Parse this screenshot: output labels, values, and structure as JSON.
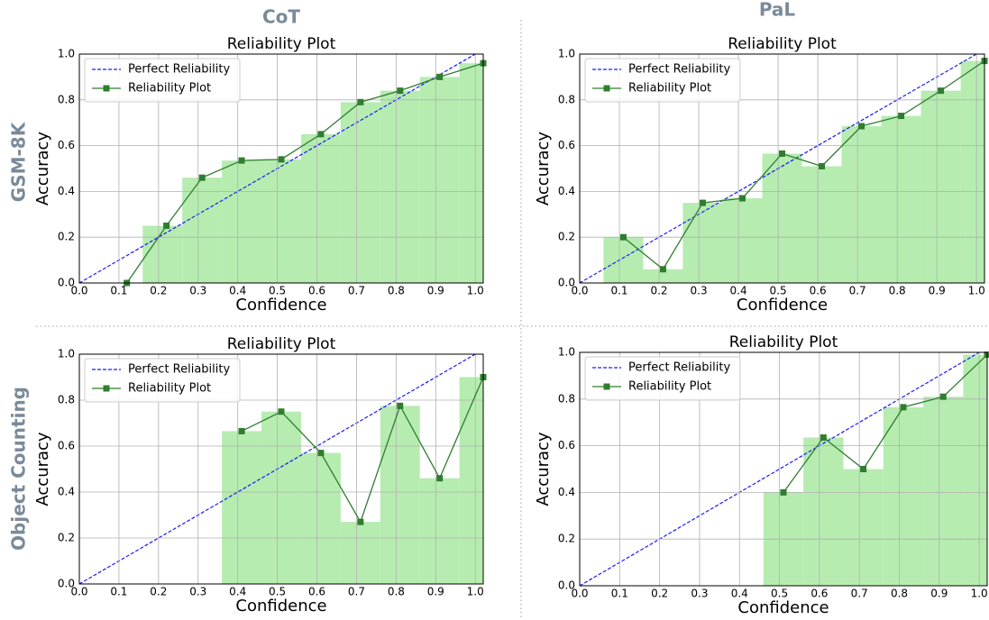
{
  "column_labels": [
    "CoT",
    "PaL"
  ],
  "row_labels": [
    "GSM-8K",
    "Object Counting"
  ],
  "chart_data": [
    {
      "type": "reliability",
      "title": "Reliability Plot",
      "xlabel": "Confidence",
      "ylabel": "Accuracy",
      "reference": {
        "name": "Perfect Reliability",
        "color": "#1a1aff"
      },
      "series": [
        {
          "name": "Reliability Plot",
          "color": "#2f7d2f",
          "x": [
            0.12,
            0.22,
            0.31,
            0.41,
            0.51,
            0.61,
            0.71,
            0.81,
            0.91,
            1.02
          ],
          "values": [
            0,
            0.25,
            0.46,
            0.535,
            0.54,
            0.65,
            0.79,
            0.84,
            0.9,
            0.96
          ]
        }
      ],
      "bar_color": "#b6ecb0",
      "bins": [
        0.16,
        0.26,
        0.36,
        0.46,
        0.56,
        0.66,
        0.76,
        0.86,
        0.96,
        1.06
      ],
      "bar_values": [
        0.25,
        0.46,
        0.535,
        0.54,
        0.65,
        0.79,
        0.84,
        0.9,
        0.96
      ],
      "xlim": [
        0,
        1.02
      ],
      "ylim": [
        0,
        1
      ],
      "xticks": [
        {
          "value": 0,
          "label": "0.0"
        },
        0.1,
        0.2,
        0.3,
        0.4,
        0.5,
        0.6,
        0.7,
        0.8,
        0.9,
        {
          "value": 1,
          "label": "1.0"
        }
      ],
      "yticks": [
        {
          "value": 0,
          "label": "0.0"
        },
        0.2,
        0.4,
        0.6,
        0.8,
        {
          "value": 1,
          "label": "1.0"
        }
      ],
      "grid": true,
      "legend": "upper left"
    },
    {
      "type": "reliability",
      "title": "Reliability Plot",
      "xlabel": "Confidence",
      "ylabel": "Accuracy",
      "reference": {
        "name": "Perfect Reliability",
        "color": "#1a1aff"
      },
      "series": [
        {
          "name": "Reliability Plot",
          "color": "#2f7d2f",
          "x": [
            0.11,
            0.21,
            0.31,
            0.41,
            0.51,
            0.61,
            0.71,
            0.81,
            0.91,
            1.02
          ],
          "values": [
            0.2,
            0.06,
            0.35,
            0.37,
            0.565,
            0.51,
            0.685,
            0.73,
            0.84,
            0.97
          ]
        }
      ],
      "bar_color": "#b6ecb0",
      "bins": [
        0.06,
        0.16,
        0.26,
        0.36,
        0.46,
        0.56,
        0.66,
        0.76,
        0.86,
        0.96,
        1.06
      ],
      "bar_values": [
        0.2,
        0.06,
        0.35,
        0.37,
        0.565,
        0.51,
        0.685,
        0.73,
        0.84,
        0.97
      ],
      "xlim": [
        0,
        1.02
      ],
      "ylim": [
        0,
        1
      ],
      "xticks": [
        {
          "value": 0,
          "label": "0.0"
        },
        0.1,
        0.2,
        0.3,
        0.4,
        0.5,
        0.6,
        0.7,
        0.8,
        0.9,
        {
          "value": 1,
          "label": "1.0"
        }
      ],
      "yticks": [
        {
          "value": 0,
          "label": "0.0"
        },
        0.2,
        0.4,
        0.6,
        0.8,
        {
          "value": 1,
          "label": "1.0"
        }
      ],
      "grid": true,
      "legend": "upper left"
    },
    {
      "type": "reliability",
      "title": "Reliability Plot",
      "xlabel": "Confidence",
      "ylabel": "Accuracy",
      "reference": {
        "name": "Perfect Reliability",
        "color": "#1a1aff"
      },
      "series": [
        {
          "name": "Reliability Plot",
          "color": "#2f7d2f",
          "x": [
            0.41,
            0.51,
            0.61,
            0.71,
            0.81,
            0.91,
            1.02
          ],
          "values": [
            0.665,
            0.75,
            0.57,
            0.27,
            0.775,
            0.46,
            0.9
          ]
        }
      ],
      "bar_color": "#b6ecb0",
      "bins": [
        0.36,
        0.46,
        0.56,
        0.66,
        0.76,
        0.86,
        0.96,
        1.06
      ],
      "bar_values": [
        0.665,
        0.75,
        0.57,
        0.27,
        0.775,
        0.46,
        0.9
      ],
      "xlim": [
        0,
        1.02
      ],
      "ylim": [
        0,
        1
      ],
      "xticks": [
        {
          "value": 0,
          "label": "0.0"
        },
        0.1,
        0.2,
        0.3,
        0.4,
        0.5,
        0.6,
        0.7,
        0.8,
        0.9,
        {
          "value": 1,
          "label": "1.0"
        }
      ],
      "yticks": [
        {
          "value": 0,
          "label": "0.0"
        },
        0.2,
        0.4,
        0.6,
        0.8,
        {
          "value": 1,
          "label": "1.0"
        }
      ],
      "grid": true,
      "legend": "upper left"
    },
    {
      "type": "reliability",
      "title": "Reliability Plot",
      "xlabel": "Confidence",
      "ylabel": "Accuracy",
      "reference": {
        "name": "Perfect Reliability",
        "color": "#1a1aff"
      },
      "series": [
        {
          "name": "Reliability Plot",
          "color": "#2f7d2f",
          "x": [
            0.51,
            0.61,
            0.71,
            0.81,
            0.91,
            1.02
          ],
          "values": [
            0.4,
            0.635,
            0.5,
            0.765,
            0.81,
            0.99
          ]
        }
      ],
      "bar_color": "#b6ecb0",
      "bins": [
        0.46,
        0.56,
        0.66,
        0.76,
        0.86,
        0.96,
        1.06
      ],
      "bar_values": [
        0.4,
        0.635,
        0.5,
        0.765,
        0.81,
        0.99
      ],
      "xlim": [
        0,
        1.02
      ],
      "ylim": [
        0,
        1
      ],
      "xticks": [
        {
          "value": 0,
          "label": "0.0"
        },
        0.1,
        0.2,
        0.3,
        0.4,
        0.5,
        0.6,
        0.7,
        0.8,
        0.9,
        {
          "value": 1,
          "label": "1.0"
        }
      ],
      "yticks": [
        {
          "value": 0,
          "label": "0.0"
        },
        0.2,
        0.4,
        0.6,
        0.8,
        {
          "value": 1,
          "label": "1.0"
        }
      ],
      "grid": true,
      "legend": "upper left"
    }
  ]
}
